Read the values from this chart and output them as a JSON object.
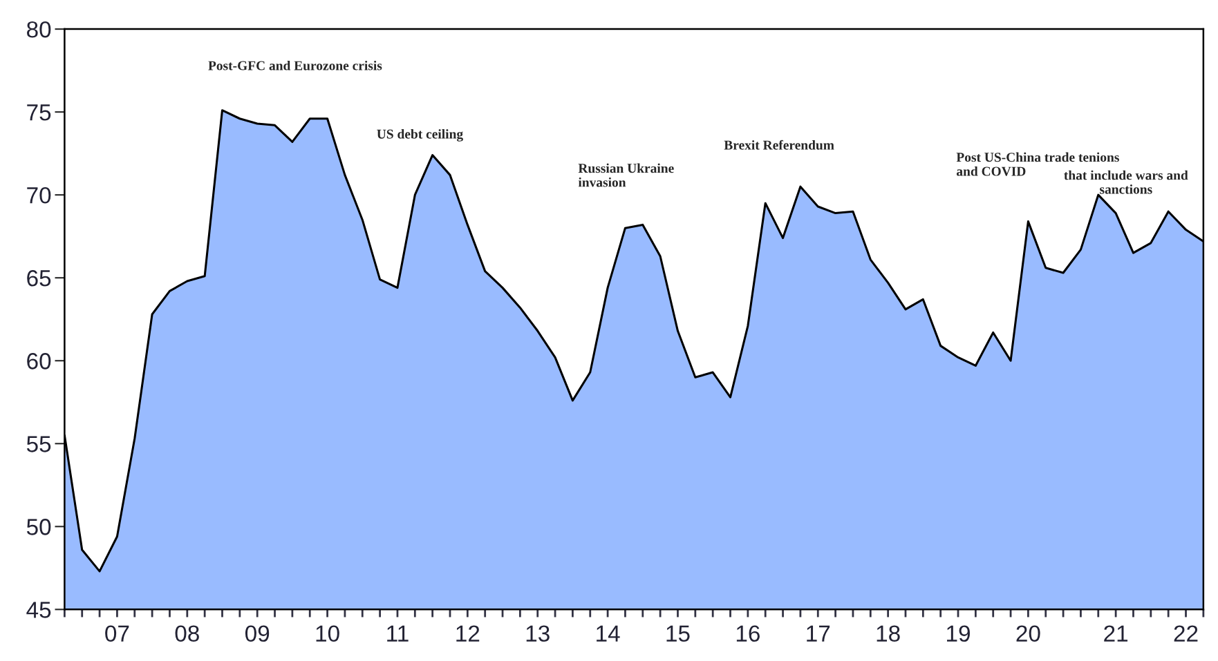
{
  "chart_data": {
    "type": "area",
    "categories": [
      null,
      null,
      null,
      "07",
      null,
      null,
      null,
      "08",
      null,
      null,
      null,
      "09",
      null,
      null,
      null,
      "10",
      null,
      null,
      null,
      "11",
      null,
      null,
      null,
      "12",
      null,
      null,
      null,
      "13",
      null,
      null,
      null,
      "14",
      null,
      null,
      null,
      "15",
      null,
      null,
      null,
      "16",
      null,
      null,
      null,
      "17",
      null,
      null,
      null,
      "18",
      null,
      null,
      null,
      "19",
      null,
      null,
      null,
      "20",
      null,
      null,
      null,
      null,
      "21",
      null,
      null,
      null,
      "22",
      null
    ],
    "values": [
      55.5,
      48.6,
      47.3,
      49.4,
      55.3,
      62.8,
      64.2,
      64.8,
      65.1,
      75.1,
      74.6,
      74.3,
      74.2,
      73.2,
      74.6,
      74.6,
      71.2,
      68.5,
      64.9,
      64.4,
      70.0,
      72.4,
      71.2,
      68.2,
      65.4,
      64.4,
      63.2,
      61.8,
      60.2,
      57.6,
      59.3,
      64.4,
      68.0,
      68.2,
      66.3,
      61.8,
      59.0,
      59.3,
      57.8,
      62.1,
      69.5,
      67.4,
      70.5,
      69.3,
      68.9,
      69.0,
      66.1,
      64.7,
      63.1,
      63.7,
      60.9,
      60.2,
      59.7,
      61.7,
      60.0,
      68.4,
      65.6,
      65.3,
      66.7,
      70.0,
      68.9,
      66.5,
      67.1,
      69.0,
      67.9,
      67.2
    ],
    "color": "#99bbff",
    "ylim": [
      45,
      80
    ],
    "yticks": [
      45,
      50,
      55,
      60,
      65,
      70,
      75,
      80
    ],
    "grid": false,
    "annotations": [
      "Post-GFC and Eurozone crisis",
      "US debt ceiling",
      "Russian Ukraine\ninvasion",
      "Brexit Referendum",
      "Post US-China trade tenions\nand COVID",
      "that include wars and\nsanctions"
    ]
  }
}
